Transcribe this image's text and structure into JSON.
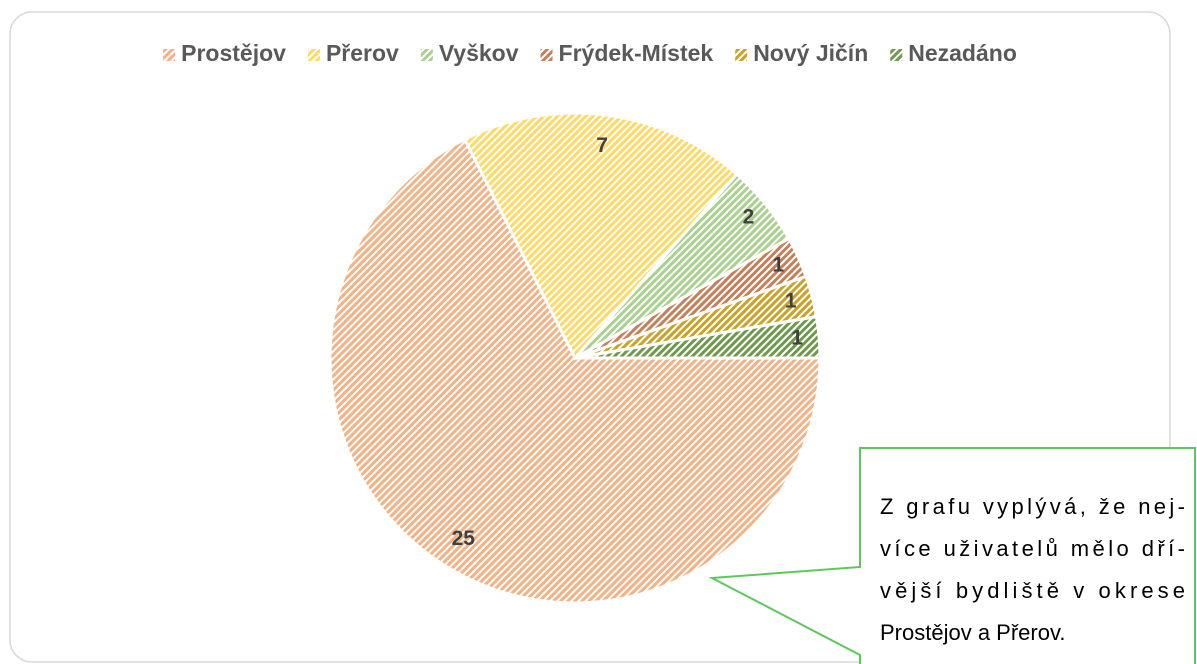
{
  "chart_data": {
    "type": "pie",
    "categories": [
      "Prostějov",
      "Přerov",
      "Vyškov",
      "Frýdek-Místek",
      "Nový Jičín",
      "Nezadáno"
    ],
    "values": [
      25,
      7,
      2,
      1,
      1,
      1
    ],
    "colors": [
      "#f4b183",
      "#ffd966",
      "#a9d18e",
      "#c5805a",
      "#c9a227",
      "#6f9a4e"
    ],
    "legend": "top",
    "annotation": [
      "Z grafu vyplývá, že nej-",
      "více uživatelů mělo dří-",
      "vější bydliště  v okrese",
      "Prostějov a Přerov."
    ]
  }
}
